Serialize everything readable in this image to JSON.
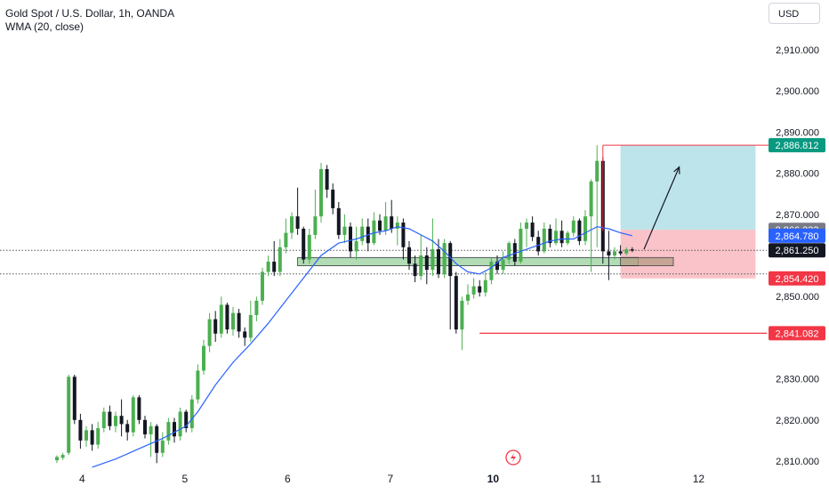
{
  "header": {
    "title": "Gold Spot / U.S. Dollar, 1h, OANDA",
    "indicator": "WMA (20, close)"
  },
  "toolbar": {
    "currency": "USD"
  },
  "colors": {
    "up": "#4caf50",
    "down": "#131722",
    "wma": "#2962ff",
    "zone_fill": "#a5d6a7",
    "profit": "#b2dfe6",
    "loss": "#f8b9c0",
    "level_line": "#f23645",
    "badge_teal": "#089981",
    "badge_gray": "#787b86",
    "badge_blue": "#2962ff",
    "badge_black": "#131722",
    "badge_red": "#f23645"
  },
  "chart_data": {
    "type": "candlestick",
    "ylim": [
      2808,
      2920
    ],
    "y_ticks": [
      "2,910.000",
      "2,900.000",
      "2,890.000",
      "2,880.000",
      "2,870.000",
      "2,850.000",
      "2,830.000",
      "2,820.000",
      "2,810.000"
    ],
    "x_ticks": [
      {
        "label": "4",
        "t": 4.3
      },
      {
        "label": "5",
        "t": 21.8
      },
      {
        "label": "6",
        "t": 39.3
      },
      {
        "label": "7",
        "t": 56.8
      },
      {
        "label": "10",
        "t": 74.3
      },
      {
        "label": "11",
        "t": 91.8
      },
      {
        "label": "12",
        "t": 109.3
      }
    ],
    "candles": [
      [
        2810.2,
        2811.0,
        2809.5,
        2811.4
      ],
      [
        2810.8,
        2811.5,
        2810.3,
        2812.0
      ],
      [
        2812.0,
        2830.5,
        2811.5,
        2831.0
      ],
      [
        2830.5,
        2820.0,
        2819.0,
        2831.0
      ],
      [
        2820.0,
        2815.0,
        2813.0,
        2821.5
      ],
      [
        2815.0,
        2817.5,
        2813.5,
        2818.5
      ],
      [
        2817.5,
        2814.0,
        2812.5,
        2819.0
      ],
      [
        2814.0,
        2818.0,
        2813.0,
        2819.5
      ],
      [
        2818.0,
        2822.0,
        2817.0,
        2823.0
      ],
      [
        2822.0,
        2818.5,
        2817.5,
        2823.5
      ],
      [
        2818.5,
        2821.0,
        2817.0,
        2822.0
      ],
      [
        2821.0,
        2819.0,
        2816.0,
        2825.0
      ],
      [
        2819.0,
        2817.0,
        2815.0,
        2820.0
      ],
      [
        2817.0,
        2825.5,
        2816.0,
        2826.0
      ],
      [
        2825.5,
        2820.0,
        2819.0,
        2826.0
      ],
      [
        2820.0,
        2816.5,
        2815.5,
        2821.0
      ],
      [
        2816.5,
        2818.5,
        2811.0,
        2819.5
      ],
      [
        2818.5,
        2812.0,
        2809.5,
        2819.0
      ],
      [
        2812.0,
        2815.0,
        2811.0,
        2817.0
      ],
      [
        2815.0,
        2819.5,
        2814.0,
        2820.5
      ],
      [
        2819.5,
        2816.0,
        2814.5,
        2820.5
      ],
      [
        2816.0,
        2822.0,
        2815.0,
        2823.0
      ],
      [
        2822.0,
        2818.0,
        2817.0,
        2822.5
      ],
      [
        2818.0,
        2825.0,
        2817.0,
        2826.0
      ],
      [
        2825.0,
        2832.0,
        2824.0,
        2833.5
      ],
      [
        2832.0,
        2838.0,
        2831.0,
        2839.5
      ],
      [
        2838.0,
        2844.5,
        2836.5,
        2846.0
      ],
      [
        2844.5,
        2841.0,
        2839.0,
        2846.5
      ],
      [
        2841.0,
        2848.0,
        2840.0,
        2850.0
      ],
      [
        2848.0,
        2842.0,
        2841.0,
        2848.5
      ],
      [
        2842.0,
        2846.0,
        2840.5,
        2847.5
      ],
      [
        2846.0,
        2841.5,
        2840.0,
        2847.0
      ],
      [
        2841.5,
        2840.0,
        2838.0,
        2842.5
      ],
      [
        2840.0,
        2845.5,
        2839.0,
        2849.0
      ],
      [
        2845.5,
        2849.0,
        2844.0,
        2850.0
      ],
      [
        2849.0,
        2856.0,
        2848.0,
        2857.0
      ],
      [
        2856.0,
        2858.5,
        2855.0,
        2860.0
      ],
      [
        2858.5,
        2856.0,
        2855.0,
        2863.5
      ],
      [
        2856.0,
        2862.0,
        2855.0,
        2864.0
      ],
      [
        2862.0,
        2865.5,
        2860.5,
        2869.0
      ],
      [
        2865.5,
        2869.5,
        2864.0,
        2870.5
      ],
      [
        2869.5,
        2866.5,
        2865.0,
        2876.5
      ],
      [
        2866.5,
        2859.0,
        2858.0,
        2867.0
      ],
      [
        2859.0,
        2865.0,
        2858.0,
        2866.5
      ],
      [
        2865.0,
        2869.5,
        2864.0,
        2876.0
      ],
      [
        2869.5,
        2881.0,
        2868.0,
        2882.5
      ],
      [
        2881.0,
        2876.0,
        2874.0,
        2882.0
      ],
      [
        2876.0,
        2871.5,
        2870.0,
        2877.5
      ],
      [
        2871.5,
        2865.0,
        2864.0,
        2873.0
      ],
      [
        2865.0,
        2867.0,
        2863.0,
        2870.0
      ],
      [
        2867.0,
        2861.0,
        2859.5,
        2868.0
      ],
      [
        2861.0,
        2863.5,
        2859.0,
        2867.0
      ],
      [
        2863.5,
        2867.0,
        2862.5,
        2869.0
      ],
      [
        2867.0,
        2863.0,
        2861.0,
        2869.0
      ],
      [
        2863.0,
        2868.5,
        2862.5,
        2870.5
      ],
      [
        2868.5,
        2866.0,
        2865.0,
        2870.0
      ],
      [
        2866.0,
        2869.5,
        2865.0,
        2873.0
      ],
      [
        2869.5,
        2866.5,
        2865.5,
        2873.5
      ],
      [
        2866.5,
        2868.0,
        2862.5,
        2869.5
      ],
      [
        2868.0,
        2862.0,
        2859.0,
        2869.0
      ],
      [
        2862.0,
        2858.0,
        2856.5,
        2863.5
      ],
      [
        2858.0,
        2855.0,
        2853.5,
        2860.0
      ],
      [
        2855.0,
        2860.0,
        2854.0,
        2865.0
      ],
      [
        2860.0,
        2856.5,
        2853.0,
        2862.0
      ],
      [
        2856.5,
        2861.5,
        2855.0,
        2869.0
      ],
      [
        2861.5,
        2855.5,
        2854.5,
        2864.0
      ],
      [
        2855.5,
        2863.0,
        2854.5,
        2864.0
      ],
      [
        2863.0,
        2855.0,
        2842.0,
        2863.5
      ],
      [
        2855.0,
        2842.0,
        2841.0,
        2856.0
      ],
      [
        2842.0,
        2849.0,
        2837.0,
        2850.0
      ],
      [
        2849.0,
        2850.5,
        2848.0,
        2853.0
      ],
      [
        2850.5,
        2852.5,
        2849.5,
        2854.5
      ],
      [
        2852.5,
        2851.0,
        2850.0,
        2854.0
      ],
      [
        2851.0,
        2854.0,
        2850.0,
        2856.0
      ],
      [
        2854.0,
        2858.5,
        2853.0,
        2859.5
      ],
      [
        2858.5,
        2856.5,
        2855.5,
        2860.0
      ],
      [
        2856.5,
        2859.0,
        2855.5,
        2861.0
      ],
      [
        2859.0,
        2863.0,
        2858.0,
        2863.5
      ],
      [
        2863.0,
        2858.5,
        2857.5,
        2864.0
      ],
      [
        2858.5,
        2866.5,
        2858.0,
        2868.0
      ],
      [
        2866.5,
        2868.0,
        2862.0,
        2869.0
      ],
      [
        2868.0,
        2864.5,
        2863.5,
        2869.5
      ],
      [
        2864.5,
        2861.0,
        2860.0,
        2866.0
      ],
      [
        2861.0,
        2866.5,
        2860.5,
        2868.0
      ],
      [
        2866.5,
        2863.0,
        2862.0,
        2867.5
      ],
      [
        2863.0,
        2866.0,
        2862.5,
        2869.0
      ],
      [
        2866.0,
        2863.0,
        2862.0,
        2868.5
      ],
      [
        2863.0,
        2865.5,
        2862.5,
        2866.0
      ],
      [
        2865.5,
        2868.5,
        2864.5,
        2869.5
      ],
      [
        2868.5,
        2863.5,
        2862.5,
        2869.0
      ],
      [
        2863.5,
        2869.5,
        2862.5,
        2871.0
      ],
      [
        2869.5,
        2878.0,
        2856.0,
        2878.5
      ],
      [
        2878.0,
        2883.0,
        2862.0,
        2886.8
      ],
      [
        2883.0,
        2861.0,
        2858.0,
        2884.0
      ],
      [
        2861.0,
        2860.0,
        2854.0,
        2866.0
      ],
      [
        2860.0,
        2861.0,
        2859.0,
        2862.0
      ],
      [
        2861.0,
        2860.5,
        2860.0,
        2862.5
      ],
      [
        2860.5,
        2861.5,
        2860.0,
        2862.0
      ],
      [
        2861.5,
        2861.2,
        2860.8,
        2862.0
      ]
    ],
    "wma": [
      [
        6,
        2808.5
      ],
      [
        10,
        2810.5
      ],
      [
        14,
        2813.0
      ],
      [
        18,
        2815.5
      ],
      [
        22,
        2818.5
      ],
      [
        24,
        2822.0
      ],
      [
        27,
        2828.5
      ],
      [
        30,
        2834.0
      ],
      [
        33,
        2838.5
      ],
      [
        36,
        2843.5
      ],
      [
        39,
        2849.0
      ],
      [
        42,
        2854.5
      ],
      [
        45,
        2860.0
      ],
      [
        48,
        2863.0
      ],
      [
        51,
        2864.0
      ],
      [
        54,
        2865.5
      ],
      [
        56,
        2866.0
      ],
      [
        58,
        2867.0
      ],
      [
        60,
        2866.5
      ],
      [
        62,
        2865.0
      ],
      [
        64,
        2863.5
      ],
      [
        66,
        2861.0
      ],
      [
        68,
        2858.0
      ],
      [
        70,
        2856.0
      ],
      [
        72,
        2855.5
      ],
      [
        74,
        2857.0
      ],
      [
        76,
        2859.5
      ],
      [
        78,
        2860.5
      ],
      [
        80,
        2861.5
      ],
      [
        82,
        2862.5
      ],
      [
        84,
        2863.5
      ],
      [
        86,
        2864.0
      ],
      [
        88,
        2864.0
      ],
      [
        90,
        2865.5
      ],
      [
        92,
        2867.0
      ],
      [
        94,
        2866.5
      ],
      [
        96,
        2865.5
      ],
      [
        98,
        2864.8
      ]
    ],
    "zone": {
      "t0": 41,
      "t1": 99,
      "y_top": 2859.5,
      "y_bottom": 2857.5,
      "box_t1": 105
    },
    "position": {
      "t0": 96,
      "t1": 119,
      "target": 2886.812,
      "entry": 2866.233,
      "stop": 2854.42,
      "entry_mark": 2861.25
    },
    "target_line": {
      "t0": 93,
      "t1": 125,
      "value": 2886.812
    },
    "support_line": {
      "t0": 72,
      "t1": 147,
      "value": 2841.082
    },
    "dotted_lines": [
      2861.25,
      2855.5
    ],
    "arrow": {
      "t0": 100,
      "y0": 2861.5,
      "t1": 106,
      "y1": 2881.5
    },
    "badges": [
      {
        "value": "2,886.812",
        "y": 2886.812,
        "color": "#089981"
      },
      {
        "value": "2,866.233",
        "y": 2866.233,
        "color": "#787b86"
      },
      {
        "value": "2,864.780",
        "y": 2864.78,
        "color": "#2962ff"
      },
      {
        "value": "2,861.250",
        "y": 2861.25,
        "color": "#131722"
      },
      {
        "value": "2,854.420",
        "y": 2854.42,
        "color": "#f23645"
      },
      {
        "value": "2,841.082",
        "y": 2841.082,
        "color": "#f23645"
      }
    ]
  }
}
